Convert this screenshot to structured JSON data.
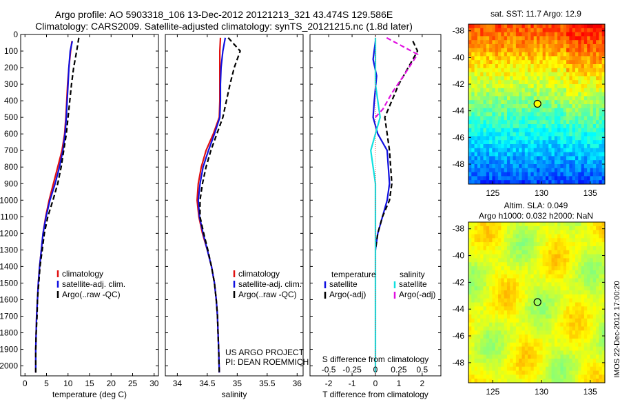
{
  "header": {
    "title_line1": "Argo profile: AO 5903318_106 13-Dec-2012 20121213_321 43.474S 129.586E",
    "title_line2": "Climatology: CARS2009. Satellite-adjusted climatology: synTS_20121215.nc (1.8d later)"
  },
  "footer": {
    "stamp": "IMOS 22-Dec-2012 17:00:20"
  },
  "colors": {
    "climatology": "#e01010",
    "satellite": "#1010e0",
    "argo": "#000000",
    "sat_salinity": "#10e0e0",
    "argo_salinity_adj": "#e010e0"
  },
  "chart_data": [
    {
      "type": "line",
      "id": "temperature",
      "xlabel": "temperature (deg C)",
      "xlim": [
        -1,
        31
      ],
      "ylim": [
        2060,
        0
      ],
      "xticks": [
        0,
        5,
        10,
        15,
        20,
        25,
        30
      ],
      "yticks": [
        0,
        100,
        200,
        300,
        400,
        500,
        600,
        700,
        800,
        900,
        1000,
        1100,
        1200,
        1300,
        1400,
        1500,
        1600,
        1700,
        1800,
        1900,
        2000
      ],
      "legend": [
        "climatology",
        "satellite-adj. clim.",
        "Argo(..raw -QC)"
      ],
      "series": [
        {
          "name": "climatology",
          "color": "#e01010",
          "x": [
            10.9,
            10.6,
            10.2,
            9.9,
            9.7,
            9.5,
            9.2,
            8.6,
            7.6,
            6.6,
            5.6,
            4.8,
            4.2,
            3.8,
            3.4,
            3.1,
            2.9,
            2.7,
            2.6,
            2.5,
            2.5
          ],
          "y": [
            40,
            100,
            200,
            300,
            400,
            500,
            600,
            700,
            800,
            900,
            1000,
            1100,
            1200,
            1300,
            1400,
            1500,
            1600,
            1700,
            1800,
            1900,
            2040
          ]
        },
        {
          "name": "satellite-adj. clim.",
          "color": "#1010e0",
          "x": [
            11.0,
            10.5,
            10.2,
            10.0,
            9.8,
            9.6,
            9.3,
            8.8,
            8.0,
            7.0,
            5.8,
            4.9,
            4.2,
            3.8,
            3.4,
            3.1,
            2.9,
            2.7,
            2.6,
            2.5,
            2.5
          ],
          "y": [
            40,
            100,
            200,
            300,
            400,
            500,
            600,
            700,
            800,
            900,
            1000,
            1100,
            1200,
            1300,
            1400,
            1500,
            1600,
            1700,
            1800,
            1900,
            2040
          ]
        },
        {
          "name": "Argo(..raw -QC)",
          "color": "#000000",
          "dash": true,
          "x": [
            12.5,
            12.0,
            11.3,
            10.8,
            10.4,
            10.0,
            9.6,
            9.0,
            8.4,
            7.6,
            6.5,
            5.3,
            4.5,
            4.0,
            3.5,
            3.2,
            2.9,
            2.8,
            2.6,
            2.5,
            2.5
          ],
          "y": [
            20,
            100,
            200,
            300,
            400,
            500,
            600,
            700,
            800,
            900,
            1000,
            1100,
            1200,
            1300,
            1400,
            1500,
            1600,
            1700,
            1800,
            1900,
            2040
          ]
        }
      ]
    },
    {
      "type": "line",
      "id": "salinity",
      "xlabel": "salinity",
      "xlim": [
        33.8,
        36.1
      ],
      "ylim": [
        2060,
        0
      ],
      "xticks": [
        34,
        34.5,
        35,
        35.5,
        36
      ],
      "legend": [
        "climatology",
        "satellite-adj. clim.",
        "Argo(..raw -QC)"
      ],
      "annotation": [
        "US ARGO PROJECT",
        "PI: DEAN ROEMMICH"
      ],
      "series": [
        {
          "name": "climatology",
          "color": "#e01010",
          "x": [
            34.72,
            34.71,
            34.71,
            34.71,
            34.71,
            34.7,
            34.6,
            34.48,
            34.4,
            34.35,
            34.33,
            34.36,
            34.42,
            34.5,
            34.57,
            34.62,
            34.65,
            34.67,
            34.68,
            34.69,
            34.7
          ],
          "y": [
            20,
            100,
            200,
            300,
            400,
            500,
            600,
            700,
            800,
            900,
            1000,
            1100,
            1200,
            1300,
            1400,
            1500,
            1600,
            1700,
            1800,
            1900,
            2040
          ]
        },
        {
          "name": "satellite-adj. clim.",
          "color": "#1010e0",
          "x": [
            34.8,
            34.76,
            34.73,
            34.72,
            34.72,
            34.71,
            34.62,
            34.52,
            34.43,
            34.38,
            34.35,
            34.37,
            34.43,
            34.5,
            34.57,
            34.62,
            34.65,
            34.67,
            34.68,
            34.69,
            34.7
          ],
          "y": [
            20,
            100,
            200,
            300,
            400,
            500,
            600,
            700,
            800,
            900,
            1000,
            1100,
            1200,
            1300,
            1400,
            1500,
            1600,
            1700,
            1800,
            1900,
            2040
          ]
        },
        {
          "name": "Argo(..raw -QC)",
          "color": "#000000",
          "dash": true,
          "x": [
            34.85,
            35.05,
            34.95,
            34.88,
            34.82,
            34.76,
            34.66,
            34.56,
            34.48,
            34.42,
            34.38,
            34.38,
            34.44,
            34.51,
            34.57,
            34.62,
            34.65,
            34.67,
            34.68,
            34.69,
            34.7
          ],
          "y": [
            20,
            100,
            200,
            300,
            400,
            500,
            600,
            700,
            800,
            900,
            1000,
            1100,
            1200,
            1300,
            1400,
            1500,
            1600,
            1700,
            1800,
            1900,
            2040
          ]
        }
      ]
    },
    {
      "type": "line",
      "id": "difference",
      "xlabel": "T difference from climatology",
      "top_axis_label": "S difference from climatology",
      "xlim": [
        -2.8,
        2.8
      ],
      "ylim": [
        2060,
        0
      ],
      "xticks": [
        -2,
        -1,
        0,
        1,
        2
      ],
      "xticks_top": [
        -0.5,
        -0.25,
        0,
        0.25,
        0.5
      ],
      "legend_headers": [
        "temperature",
        "salinity"
      ],
      "legend": [
        "satellite",
        "Argo(-adj)",
        "satellite",
        "Argo(-adj)"
      ],
      "series": [
        {
          "name": "satellite",
          "group": "temperature",
          "color": "#1010e0",
          "x": [
            0.0,
            -0.1,
            0.05,
            -0.05,
            -0.1,
            0.1,
            0.5,
            0.6,
            0.5,
            0.3,
            0.1,
            0.0
          ],
          "y": [
            40,
            150,
            250,
            400,
            500,
            600,
            700,
            900,
            1000,
            1100,
            1200,
            1300
          ]
        },
        {
          "name": "Argo(-adj)",
          "group": "temperature",
          "color": "#000000",
          "dash": true,
          "x": [
            1.6,
            1.8,
            1.4,
            1.0,
            0.7,
            0.4,
            0.6,
            0.7,
            0.6,
            0.3,
            0.1,
            0.0
          ],
          "y": [
            40,
            100,
            200,
            300,
            400,
            500,
            700,
            900,
            1000,
            1100,
            1200,
            1300
          ]
        },
        {
          "name": "satellite",
          "group": "salinity",
          "color": "#10e0e0",
          "x": [
            0.0,
            0.0,
            0.05,
            -0.05,
            0.0,
            0.0,
            0.0
          ],
          "y": [
            20,
            300,
            500,
            700,
            900,
            1500,
            2040
          ]
        },
        {
          "name": "Argo(-adj)",
          "group": "salinity",
          "color": "#e010e0",
          "dash": true,
          "x": [
            0.12,
            0.45,
            0.3,
            0.18,
            0.08,
            0.0
          ],
          "y": [
            20,
            120,
            250,
            350,
            450,
            500
          ]
        }
      ]
    },
    {
      "type": "heatmap",
      "id": "sst_map",
      "title": "sat. SST: 11.7 Argo: 12.9",
      "xticks": [
        125,
        130,
        135
      ],
      "yticks": [
        -38,
        -40,
        -42,
        -44,
        -46,
        -48
      ],
      "xlim": [
        122.5,
        136.5
      ],
      "ylim": [
        -49.5,
        -37.5
      ],
      "marker": {
        "lon": 129.586,
        "lat": -43.474
      }
    },
    {
      "type": "heatmap",
      "id": "sla_map",
      "title": [
        "Altim. SLA: 0.049",
        "Argo h1000: 0.032 h2000: NaN"
      ],
      "xticks": [
        125,
        130,
        135
      ],
      "yticks": [
        -38,
        -40,
        -42,
        -44,
        -46,
        -48
      ],
      "xlim": [
        122.5,
        136.5
      ],
      "ylim": [
        -49.5,
        -37.5
      ],
      "marker": {
        "lon": 129.586,
        "lat": -43.474
      }
    }
  ]
}
